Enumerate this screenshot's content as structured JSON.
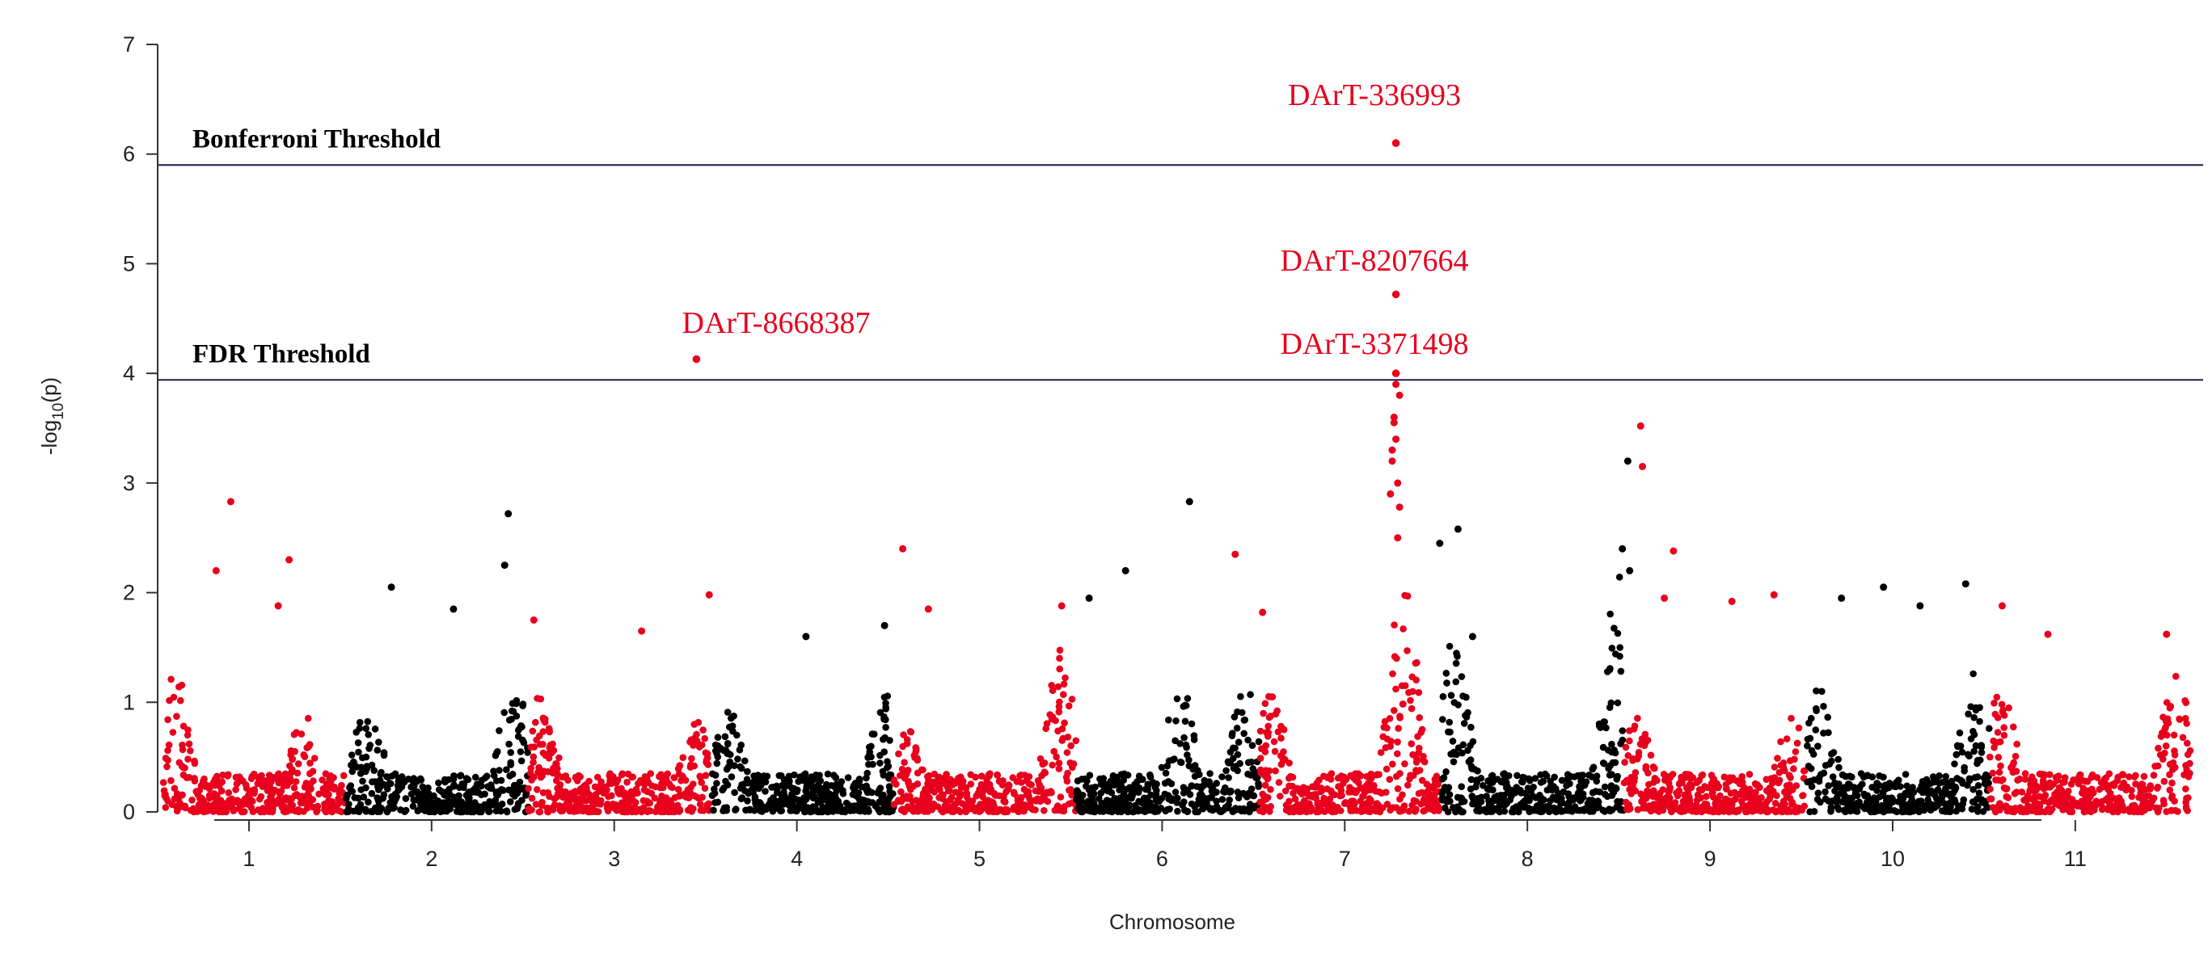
{
  "chart_data": {
    "type": "scatter",
    "subtype": "manhattan",
    "title": "",
    "xlabel": "Chromosome",
    "ylabel": "-log10(p)",
    "ylim": [
      0,
      7
    ],
    "yticks": [
      "0",
      "1",
      "2",
      "3",
      "4",
      "5",
      "6",
      "7"
    ],
    "xlim": [
      0.5,
      11.7
    ],
    "categories": [
      "1",
      "2",
      "3",
      "4",
      "5",
      "6",
      "7",
      "8",
      "9",
      "10",
      "11"
    ],
    "tick_positions": [
      1.0,
      2.0,
      3.0,
      4.0,
      5.0,
      6.0,
      7.0,
      8.0,
      9.0,
      10.0,
      11.0
    ],
    "colors": {
      "odd_block": "#e8001d",
      "even_block": "#000000",
      "threshold": "#1a1a4a"
    },
    "blocks": [
      {
        "x_start": 0.53,
        "x_end": 1.53,
        "color": "#e8001d",
        "peaks": [
          {
            "x": 0.6,
            "y": 1.3
          },
          {
            "x": 1.3,
            "y": 0.9
          }
        ]
      },
      {
        "x_start": 1.53,
        "x_end": 2.53,
        "color": "#000000",
        "peaks": [
          {
            "x": 1.65,
            "y": 1.1
          },
          {
            "x": 2.45,
            "y": 1.3
          }
        ]
      },
      {
        "x_start": 2.53,
        "x_end": 3.53,
        "color": "#e8001d",
        "peaks": [
          {
            "x": 2.6,
            "y": 1.1
          },
          {
            "x": 3.45,
            "y": 0.9
          }
        ]
      },
      {
        "x_start": 3.53,
        "x_end": 4.53,
        "color": "#000000",
        "peaks": [
          {
            "x": 3.62,
            "y": 1.0
          },
          {
            "x": 4.48,
            "y": 1.1
          }
        ]
      },
      {
        "x_start": 4.53,
        "x_end": 5.53,
        "color": "#e8001d",
        "peaks": [
          {
            "x": 4.6,
            "y": 0.8
          },
          {
            "x": 5.45,
            "y": 1.5
          }
        ]
      },
      {
        "x_start": 5.53,
        "x_end": 6.53,
        "color": "#000000",
        "peaks": [
          {
            "x": 6.1,
            "y": 1.2
          },
          {
            "x": 6.45,
            "y": 1.2
          }
        ]
      },
      {
        "x_start": 6.53,
        "x_end": 7.53,
        "color": "#e8001d",
        "peaks": [
          {
            "x": 6.6,
            "y": 1.1
          },
          {
            "x": 7.32,
            "y": 2.2
          }
        ]
      },
      {
        "x_start": 7.53,
        "x_end": 8.53,
        "color": "#000000",
        "peaks": [
          {
            "x": 7.6,
            "y": 1.6
          },
          {
            "x": 8.5,
            "y": 2.2
          }
        ]
      },
      {
        "x_start": 8.53,
        "x_end": 9.53,
        "color": "#e8001d",
        "peaks": [
          {
            "x": 8.6,
            "y": 0.9
          },
          {
            "x": 9.45,
            "y": 0.9
          }
        ]
      },
      {
        "x_start": 9.53,
        "x_end": 10.53,
        "color": "#000000",
        "peaks": [
          {
            "x": 9.6,
            "y": 1.2
          },
          {
            "x": 10.45,
            "y": 1.3
          }
        ]
      },
      {
        "x_start": 10.53,
        "x_end": 11.63,
        "color": "#e8001d",
        "peaks": [
          {
            "x": 10.6,
            "y": 1.2
          },
          {
            "x": 11.55,
            "y": 1.3
          }
        ]
      }
    ],
    "highlight_points": [
      {
        "x": 0.9,
        "y": 2.83,
        "color": "#e8001d"
      },
      {
        "x": 0.82,
        "y": 2.2,
        "color": "#e8001d"
      },
      {
        "x": 1.22,
        "y": 2.3,
        "color": "#e8001d"
      },
      {
        "x": 1.16,
        "y": 1.88,
        "color": "#e8001d"
      },
      {
        "x": 2.42,
        "y": 2.72,
        "color": "#000000"
      },
      {
        "x": 2.4,
        "y": 2.25,
        "color": "#000000"
      },
      {
        "x": 1.78,
        "y": 2.05,
        "color": "#000000"
      },
      {
        "x": 2.12,
        "y": 1.85,
        "color": "#000000"
      },
      {
        "x": 2.56,
        "y": 1.75,
        "color": "#e8001d"
      },
      {
        "x": 3.52,
        "y": 1.98,
        "color": "#e8001d"
      },
      {
        "x": 3.15,
        "y": 1.65,
        "color": "#e8001d"
      },
      {
        "x": 4.48,
        "y": 1.7,
        "color": "#000000"
      },
      {
        "x": 4.05,
        "y": 1.6,
        "color": "#000000"
      },
      {
        "x": 4.58,
        "y": 2.4,
        "color": "#e8001d"
      },
      {
        "x": 4.72,
        "y": 1.85,
        "color": "#e8001d"
      },
      {
        "x": 5.45,
        "y": 1.88,
        "color": "#e8001d"
      },
      {
        "x": 6.15,
        "y": 2.83,
        "color": "#000000"
      },
      {
        "x": 5.8,
        "y": 2.2,
        "color": "#000000"
      },
      {
        "x": 5.6,
        "y": 1.95,
        "color": "#000000"
      },
      {
        "x": 6.4,
        "y": 2.35,
        "color": "#e8001d"
      },
      {
        "x": 6.55,
        "y": 1.82,
        "color": "#e8001d"
      },
      {
        "x": 7.27,
        "y": 3.6,
        "color": "#e8001d"
      },
      {
        "x": 7.3,
        "y": 3.8,
        "color": "#e8001d"
      },
      {
        "x": 7.28,
        "y": 3.4,
        "color": "#e8001d"
      },
      {
        "x": 7.26,
        "y": 3.2,
        "color": "#e8001d"
      },
      {
        "x": 7.29,
        "y": 3.0,
        "color": "#e8001d"
      },
      {
        "x": 7.25,
        "y": 2.9,
        "color": "#e8001d"
      },
      {
        "x": 7.3,
        "y": 2.78,
        "color": "#e8001d"
      },
      {
        "x": 7.27,
        "y": 3.55,
        "color": "#e8001d"
      },
      {
        "x": 7.28,
        "y": 3.9,
        "color": "#e8001d"
      },
      {
        "x": 7.26,
        "y": 3.3,
        "color": "#e8001d"
      },
      {
        "x": 7.29,
        "y": 2.5,
        "color": "#e8001d"
      },
      {
        "x": 7.52,
        "y": 2.45,
        "color": "#000000"
      },
      {
        "x": 7.62,
        "y": 2.58,
        "color": "#000000"
      },
      {
        "x": 7.7,
        "y": 1.6,
        "color": "#000000"
      },
      {
        "x": 8.55,
        "y": 3.2,
        "color": "#000000"
      },
      {
        "x": 8.52,
        "y": 2.4,
        "color": "#000000"
      },
      {
        "x": 8.56,
        "y": 2.2,
        "color": "#000000"
      },
      {
        "x": 8.62,
        "y": 3.52,
        "color": "#e8001d"
      },
      {
        "x": 8.63,
        "y": 3.15,
        "color": "#e8001d"
      },
      {
        "x": 8.8,
        "y": 2.38,
        "color": "#e8001d"
      },
      {
        "x": 8.75,
        "y": 1.95,
        "color": "#e8001d"
      },
      {
        "x": 9.12,
        "y": 1.92,
        "color": "#e8001d"
      },
      {
        "x": 9.35,
        "y": 1.98,
        "color": "#e8001d"
      },
      {
        "x": 9.72,
        "y": 1.95,
        "color": "#000000"
      },
      {
        "x": 9.95,
        "y": 2.05,
        "color": "#000000"
      },
      {
        "x": 10.15,
        "y": 1.88,
        "color": "#000000"
      },
      {
        "x": 10.4,
        "y": 2.08,
        "color": "#000000"
      },
      {
        "x": 10.6,
        "y": 1.88,
        "color": "#e8001d"
      },
      {
        "x": 10.85,
        "y": 1.62,
        "color": "#e8001d"
      },
      {
        "x": 11.5,
        "y": 1.62,
        "color": "#e8001d"
      }
    ],
    "thresholds": [
      {
        "label": "Bonferroni Threshold",
        "y": 5.9
      },
      {
        "label": "FDR Threshold",
        "y": 3.94
      }
    ],
    "labeled_markers": [
      {
        "label": "DArT-336993",
        "x": 7.28,
        "y": 6.1
      },
      {
        "label": "DArT-8207664",
        "x": 7.28,
        "y": 4.72
      },
      {
        "label": "DArT-3371498",
        "x": 7.28,
        "y": 4.0
      },
      {
        "label": "DArT-8668387",
        "x": 3.45,
        "y": 4.13
      }
    ]
  }
}
